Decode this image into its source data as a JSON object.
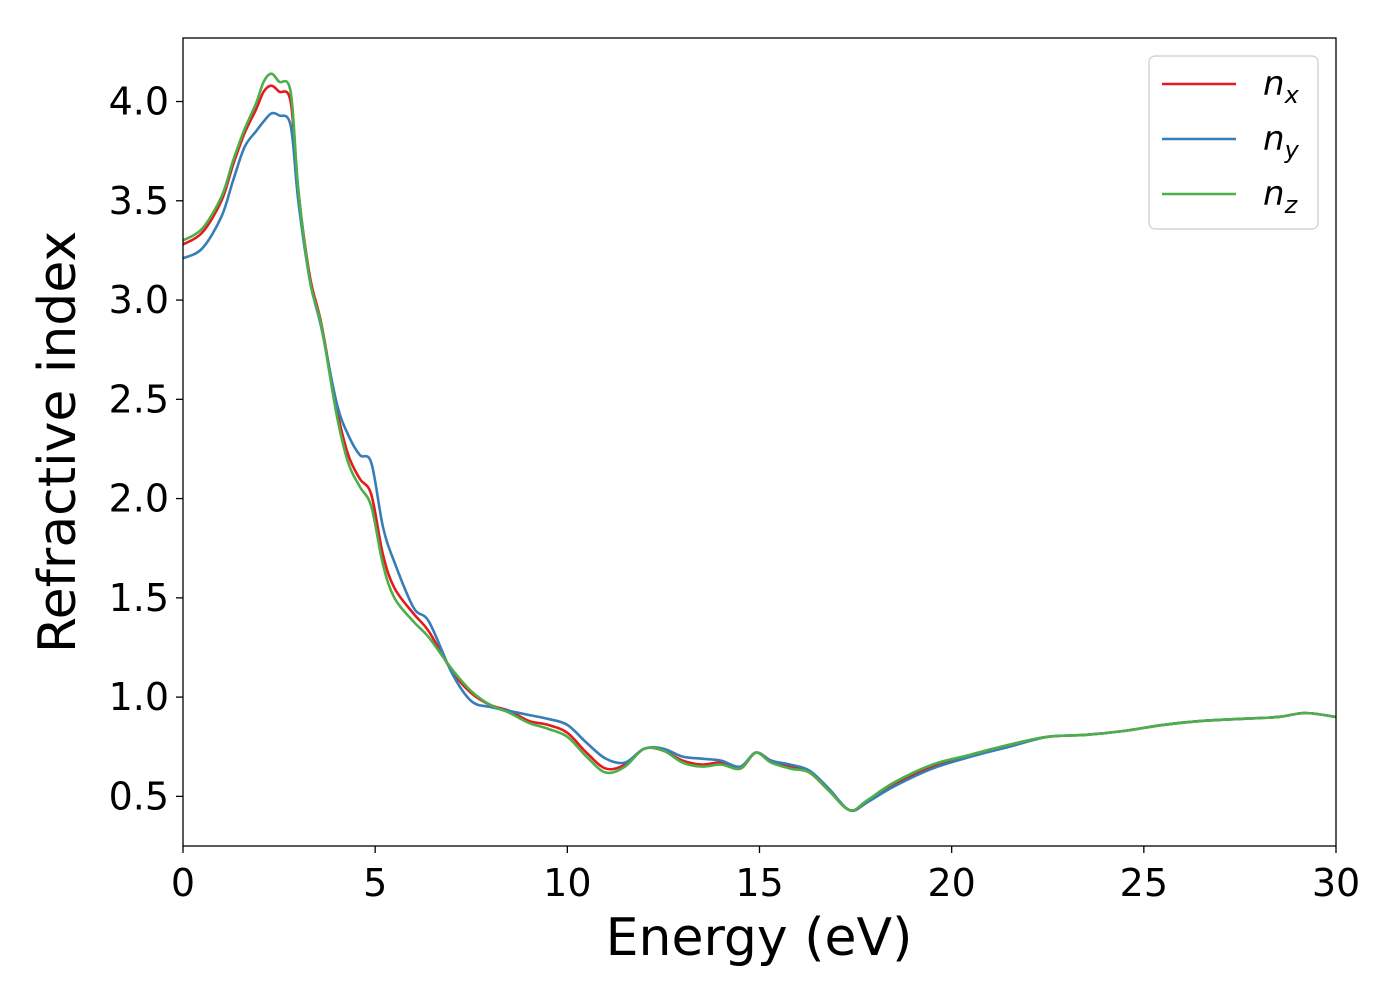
{
  "chart_data": {
    "type": "line",
    "xlabel": "Energy (eV)",
    "ylabel": "Refractive index",
    "xlim": [
      0,
      30
    ],
    "ylim": [
      0.25,
      4.32
    ],
    "xticks": [
      0,
      5,
      10,
      15,
      20,
      25,
      30
    ],
    "xtick_labels": [
      "0",
      "5",
      "10",
      "15",
      "20",
      "25",
      "30"
    ],
    "yticks": [
      0.5,
      1.0,
      1.5,
      2.0,
      2.5,
      3.0,
      3.5,
      4.0
    ],
    "ytick_labels": [
      "0.5",
      "1.0",
      "1.5",
      "2.0",
      "2.5",
      "3.0",
      "3.5",
      "4.0"
    ],
    "grid": false,
    "legend_position": "top-right",
    "series": [
      {
        "name": "n",
        "subscript": "x",
        "color": "#e41a1c",
        "x": [
          0,
          0.5,
          1.0,
          1.3,
          1.6,
          1.9,
          2.1,
          2.3,
          2.5,
          2.8,
          3.0,
          3.3,
          3.6,
          4.0,
          4.3,
          4.6,
          4.9,
          5.2,
          5.5,
          6.0,
          6.4,
          7.0,
          7.5,
          8.0,
          8.5,
          9.0,
          9.5,
          10.0,
          10.5,
          11.0,
          11.5,
          12.0,
          12.5,
          13.0,
          13.5,
          14.0,
          14.5,
          14.9,
          15.3,
          15.8,
          16.3,
          16.8,
          17.35,
          17.8,
          18.5,
          19.5,
          20.5,
          21.5,
          22.5,
          23.5,
          24.5,
          25.5,
          26.5,
          27.5,
          28.5,
          29.2,
          30.0
        ],
        "y": [
          3.28,
          3.34,
          3.5,
          3.68,
          3.84,
          3.96,
          4.05,
          4.08,
          4.05,
          4.0,
          3.55,
          3.12,
          2.88,
          2.45,
          2.22,
          2.1,
          2.02,
          1.72,
          1.55,
          1.42,
          1.33,
          1.13,
          1.02,
          0.96,
          0.93,
          0.88,
          0.86,
          0.82,
          0.72,
          0.64,
          0.66,
          0.74,
          0.73,
          0.68,
          0.66,
          0.67,
          0.64,
          0.72,
          0.68,
          0.65,
          0.62,
          0.53,
          0.43,
          0.47,
          0.56,
          0.65,
          0.71,
          0.76,
          0.8,
          0.81,
          0.83,
          0.86,
          0.88,
          0.89,
          0.9,
          0.92,
          0.9
        ]
      },
      {
        "name": "n",
        "subscript": "y",
        "color": "#377eb8",
        "x": [
          0,
          0.5,
          1.0,
          1.3,
          1.6,
          1.9,
          2.1,
          2.3,
          2.5,
          2.8,
          3.0,
          3.3,
          3.6,
          4.0,
          4.3,
          4.6,
          4.9,
          5.2,
          5.5,
          6.0,
          6.4,
          7.0,
          7.5,
          8.0,
          8.5,
          9.0,
          9.5,
          10.0,
          10.5,
          11.0,
          11.5,
          12.0,
          12.5,
          13.0,
          13.5,
          14.0,
          14.5,
          14.9,
          15.3,
          15.8,
          16.3,
          16.8,
          17.35,
          17.8,
          18.5,
          19.5,
          20.5,
          21.5,
          22.5,
          23.5,
          24.5,
          25.5,
          26.5,
          27.5,
          28.5,
          29.2,
          30.0
        ],
        "y": [
          3.21,
          3.26,
          3.42,
          3.6,
          3.77,
          3.85,
          3.9,
          3.94,
          3.93,
          3.88,
          3.5,
          3.1,
          2.86,
          2.48,
          2.32,
          2.22,
          2.18,
          1.86,
          1.68,
          1.45,
          1.38,
          1.12,
          0.98,
          0.95,
          0.93,
          0.91,
          0.89,
          0.86,
          0.77,
          0.69,
          0.67,
          0.74,
          0.74,
          0.7,
          0.69,
          0.68,
          0.65,
          0.72,
          0.68,
          0.66,
          0.63,
          0.54,
          0.43,
          0.47,
          0.55,
          0.64,
          0.7,
          0.75,
          0.8,
          0.81,
          0.83,
          0.86,
          0.88,
          0.89,
          0.9,
          0.92,
          0.9
        ]
      },
      {
        "name": "n",
        "subscript": "z",
        "color": "#4daf4a",
        "x": [
          0,
          0.5,
          1.0,
          1.3,
          1.6,
          1.9,
          2.1,
          2.3,
          2.5,
          2.8,
          3.0,
          3.3,
          3.6,
          4.0,
          4.3,
          4.6,
          4.9,
          5.2,
          5.5,
          6.0,
          6.4,
          7.0,
          7.5,
          8.0,
          8.5,
          9.0,
          9.5,
          10.0,
          10.5,
          11.0,
          11.5,
          12.0,
          12.5,
          13.0,
          13.5,
          14.0,
          14.5,
          14.9,
          15.3,
          15.8,
          16.3,
          16.8,
          17.35,
          17.8,
          18.5,
          19.5,
          20.5,
          21.5,
          22.5,
          23.5,
          24.5,
          25.5,
          26.5,
          27.5,
          28.5,
          29.2,
          30.0
        ],
        "y": [
          3.3,
          3.36,
          3.52,
          3.7,
          3.86,
          3.99,
          4.1,
          4.14,
          4.1,
          4.05,
          3.56,
          3.1,
          2.87,
          2.42,
          2.18,
          2.06,
          1.96,
          1.67,
          1.5,
          1.38,
          1.3,
          1.14,
          1.03,
          0.96,
          0.92,
          0.87,
          0.84,
          0.8,
          0.7,
          0.62,
          0.65,
          0.74,
          0.73,
          0.67,
          0.65,
          0.66,
          0.64,
          0.72,
          0.67,
          0.64,
          0.62,
          0.53,
          0.43,
          0.48,
          0.57,
          0.66,
          0.71,
          0.76,
          0.8,
          0.81,
          0.83,
          0.86,
          0.88,
          0.89,
          0.9,
          0.92,
          0.9
        ]
      }
    ]
  }
}
